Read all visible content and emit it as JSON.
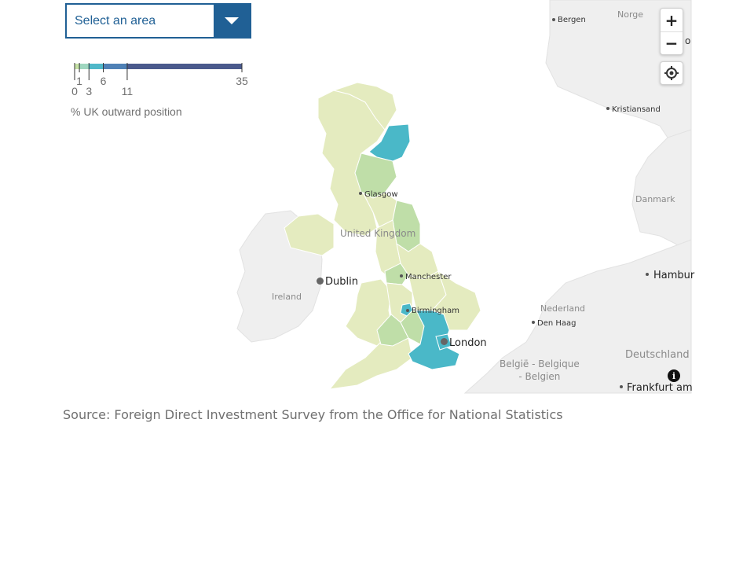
{
  "selector": {
    "placeholder": "Select an area"
  },
  "legend": {
    "breaks": [
      "0",
      "1",
      "3",
      "6",
      "11",
      "35"
    ],
    "colors": [
      "#c5e1a5",
      "#9fd7c0",
      "#4fb8c9",
      "#4f81b6",
      "#4a5a8c"
    ],
    "caption": "% UK outward position"
  },
  "region_colors": {
    "low": "#e4ebbf",
    "mid": "#bfdea8",
    "high": "#4ab8c8",
    "other_land": "#efefef",
    "sea": "#ffffff"
  },
  "map_labels": {
    "countries": {
      "uk": "United Kingdom",
      "ireland": "Ireland",
      "norway": "Norge",
      "denmark": "Danmark",
      "netherlands": "Nederland",
      "belgium": "België - Belgique\n- Belgien",
      "germany": "Deutschland"
    },
    "cities": {
      "glasgow": "Glasgow",
      "manchester": "Manchester",
      "birmingham": "Birmingham",
      "london": "London",
      "dublin": "Dublin",
      "bergen": "Bergen",
      "oslo": "o",
      "kristiansand": "Kristiansand",
      "hamburg": "Hambur",
      "den_haag": "Den Haag",
      "frankfurt": "Frankfurt am"
    }
  },
  "controls": {
    "zoom_in": "+",
    "zoom_out": "−",
    "info": "i"
  },
  "source": "Source: Foreign Direct Investment Survey from the Office for National Statistics"
}
